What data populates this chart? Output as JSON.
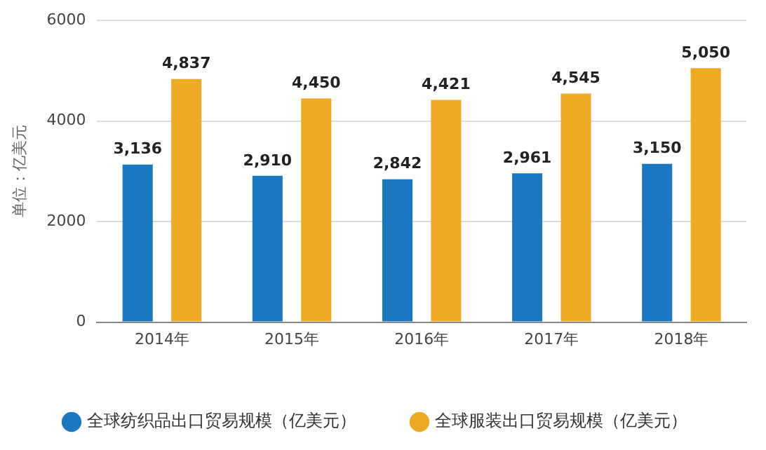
{
  "chart_data": {
    "type": "bar",
    "ylabel": "单位：亿美元",
    "categories": [
      "2014年",
      "2015年",
      "2016年",
      "2017年",
      "2018年"
    ],
    "series": [
      {
        "name": "全球纺织品出口贸易规模（亿美元）",
        "color": "#1a78c2",
        "values": [
          3136,
          2910,
          2842,
          2961,
          3150
        ],
        "value_labels": [
          "3,136",
          "2,910",
          "2,842",
          "2,961",
          "3,150"
        ]
      },
      {
        "name": "全球服装出口贸易规模（亿美元）",
        "color": "#eeaa22",
        "values": [
          4837,
          4450,
          4421,
          4545,
          5050
        ],
        "value_labels": [
          "4,837",
          "4,450",
          "4,421",
          "4,545",
          "5,050"
        ]
      }
    ],
    "ylim": [
      0,
      6000
    ],
    "yticks": [
      0,
      2000,
      4000,
      6000
    ],
    "grid": "y",
    "legend": "bottom"
  }
}
